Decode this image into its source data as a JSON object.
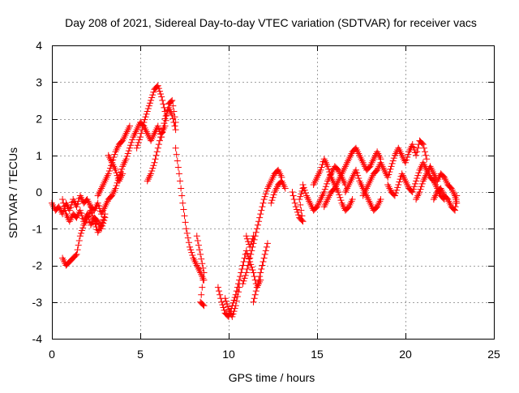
{
  "chart_data": {
    "type": "scatter",
    "title": "Day 208 of 2021, Sidereal Day-to-day VTEC variation (SDTVAR) for receiver vacs",
    "xlabel": "GPS time / hours",
    "ylabel": "SDTVAR / TECUs",
    "xlim": [
      0,
      25
    ],
    "ylim": [
      -4,
      4
    ],
    "xticks": [
      "0",
      "5",
      "10",
      "15",
      "20",
      "25"
    ],
    "yticks": [
      "4",
      "3",
      "2",
      "1",
      "0",
      "-1",
      "-2",
      "-3",
      "-4"
    ],
    "grid": true,
    "marker": "+",
    "color": "#ff0000",
    "series": [
      {
        "name": "SDTVAR",
        "tracks": [
          [
            [
              0.0,
              -0.3
            ],
            [
              0.2,
              -0.5
            ],
            [
              0.4,
              -0.4
            ],
            [
              0.6,
              -0.6
            ],
            [
              0.8,
              -0.3
            ],
            [
              1.0,
              -0.5
            ],
            [
              1.2,
              -0.2
            ],
            [
              1.4,
              -0.4
            ],
            [
              1.6,
              -0.1
            ],
            [
              1.8,
              -0.3
            ],
            [
              2.0,
              -0.2
            ],
            [
              2.2,
              -0.4
            ],
            [
              2.4,
              -0.5
            ],
            [
              2.6,
              -0.3
            ],
            [
              2.8,
              -0.6
            ],
            [
              3.0,
              -0.4
            ],
            [
              3.2,
              -0.2
            ],
            [
              3.4,
              -0.1
            ],
            [
              3.6,
              0.1
            ],
            [
              3.8,
              0.4
            ],
            [
              4.0,
              0.7
            ],
            [
              4.2,
              0.9
            ],
            [
              4.4,
              1.2
            ],
            [
              4.6,
              1.5
            ],
            [
              4.8,
              1.7
            ],
            [
              5.0,
              1.9
            ],
            [
              5.2,
              1.8
            ],
            [
              5.4,
              1.6
            ],
            [
              5.6,
              1.4
            ],
            [
              5.8,
              1.6
            ],
            [
              6.0,
              1.8
            ],
            [
              6.2,
              1.5
            ],
            [
              6.4,
              2.0
            ],
            [
              6.6,
              2.3
            ],
            [
              6.8,
              2.1
            ],
            [
              7.0,
              1.7
            ]
          ],
          [
            [
              0.6,
              -0.2
            ],
            [
              0.8,
              -0.6
            ],
            [
              1.0,
              -0.8
            ],
            [
              1.2,
              -0.6
            ],
            [
              1.4,
              -0.7
            ],
            [
              1.6,
              -0.5
            ],
            [
              1.8,
              -0.8
            ],
            [
              2.0,
              -0.6
            ],
            [
              2.2,
              -0.9
            ],
            [
              2.4,
              -0.7
            ],
            [
              2.6,
              -0.8
            ],
            [
              2.8,
              -1.0
            ],
            [
              3.0,
              -0.7
            ]
          ],
          [
            [
              0.6,
              -1.8
            ],
            [
              0.8,
              -2.0
            ],
            [
              1.0,
              -1.9
            ],
            [
              1.2,
              -1.8
            ],
            [
              1.4,
              -1.7
            ],
            [
              1.6,
              -1.2
            ],
            [
              1.8,
              -0.9
            ],
            [
              2.0,
              -0.7
            ],
            [
              2.2,
              -0.5
            ],
            [
              2.4,
              -0.8
            ],
            [
              2.6,
              -1.1
            ],
            [
              2.8,
              -0.9
            ],
            [
              3.0,
              -0.6
            ]
          ],
          [
            [
              2.6,
              -0.1
            ],
            [
              2.8,
              0.1
            ],
            [
              3.0,
              0.3
            ],
            [
              3.2,
              0.5
            ],
            [
              3.4,
              0.8
            ],
            [
              3.6,
              1.1
            ],
            [
              3.8,
              1.3
            ],
            [
              4.0,
              1.4
            ],
            [
              4.2,
              1.6
            ],
            [
              4.4,
              1.8
            ]
          ],
          [
            [
              3.2,
              1.0
            ],
            [
              3.4,
              0.8
            ],
            [
              3.6,
              0.6
            ],
            [
              3.8,
              0.3
            ],
            [
              4.0,
              0.5
            ]
          ],
          [
            [
              4.8,
              1.2
            ],
            [
              5.0,
              1.5
            ],
            [
              5.2,
              1.9
            ],
            [
              5.4,
              2.2
            ],
            [
              5.6,
              2.5
            ],
            [
              5.8,
              2.8
            ],
            [
              6.0,
              2.9
            ],
            [
              6.2,
              2.6
            ],
            [
              6.4,
              2.2
            ]
          ],
          [
            [
              5.4,
              0.3
            ],
            [
              5.6,
              0.5
            ],
            [
              5.8,
              0.8
            ],
            [
              6.0,
              1.2
            ],
            [
              6.2,
              1.6
            ],
            [
              6.4,
              1.8
            ],
            [
              6.6,
              2.4
            ],
            [
              6.8,
              2.5
            ],
            [
              7.0,
              1.9
            ]
          ],
          [
            [
              7.0,
              1.2
            ],
            [
              7.2,
              0.5
            ],
            [
              7.4,
              -0.3
            ],
            [
              7.6,
              -1.0
            ],
            [
              7.8,
              -1.5
            ],
            [
              8.0,
              -1.8
            ],
            [
              8.2,
              -2.0
            ],
            [
              8.4,
              -2.2
            ],
            [
              8.6,
              -2.4
            ]
          ],
          [
            [
              8.2,
              -1.2
            ],
            [
              8.4,
              -1.7
            ],
            [
              8.6,
              -2.2
            ],
            [
              8.4,
              -3.0
            ],
            [
              8.6,
              -3.1
            ]
          ],
          [
            [
              9.4,
              -2.6
            ],
            [
              9.6,
              -3.0
            ],
            [
              9.8,
              -3.3
            ],
            [
              10.0,
              -3.4
            ],
            [
              10.2,
              -3.1
            ],
            [
              10.4,
              -2.8
            ],
            [
              10.6,
              -2.4
            ],
            [
              10.8,
              -2.0
            ],
            [
              11.0,
              -1.6
            ],
            [
              11.2,
              -1.9
            ],
            [
              11.4,
              -2.2
            ],
            [
              11.6,
              -2.6
            ],
            [
              11.8,
              -2.4
            ]
          ],
          [
            [
              9.8,
              -2.9
            ],
            [
              10.0,
              -3.2
            ],
            [
              10.2,
              -3.4
            ],
            [
              10.4,
              -3.1
            ],
            [
              10.6,
              -2.6
            ]
          ],
          [
            [
              10.8,
              -2.5
            ],
            [
              11.0,
              -2.2
            ],
            [
              11.2,
              -1.8
            ],
            [
              11.4,
              -1.4
            ],
            [
              11.6,
              -1.0
            ],
            [
              11.8,
              -0.6
            ],
            [
              12.0,
              -0.2
            ],
            [
              12.2,
              0.1
            ],
            [
              12.4,
              0.3
            ],
            [
              12.6,
              0.5
            ],
            [
              12.8,
              0.6
            ],
            [
              13.0,
              0.4
            ]
          ],
          [
            [
              11.4,
              -3.0
            ],
            [
              11.6,
              -2.6
            ],
            [
              11.8,
              -2.2
            ],
            [
              12.0,
              -1.8
            ],
            [
              12.2,
              -1.4
            ]
          ],
          [
            [
              11.0,
              -1.2
            ],
            [
              11.2,
              -1.5
            ],
            [
              11.4,
              -1.2
            ]
          ],
          [
            [
              12.4,
              -0.3
            ],
            [
              12.6,
              0.0
            ],
            [
              12.8,
              0.2
            ],
            [
              13.0,
              0.3
            ],
            [
              13.2,
              0.1
            ]
          ],
          [
            [
              13.6,
              0.0
            ],
            [
              13.8,
              -0.4
            ],
            [
              14.0,
              -0.7
            ],
            [
              14.2,
              -0.8
            ],
            [
              14.0,
              -0.2
            ],
            [
              14.2,
              0.1
            ]
          ],
          [
            [
              14.2,
              0.2
            ],
            [
              14.4,
              -0.1
            ],
            [
              14.6,
              -0.3
            ],
            [
              14.8,
              -0.5
            ],
            [
              15.0,
              -0.4
            ],
            [
              15.2,
              -0.2
            ],
            [
              15.4,
              0.0
            ],
            [
              15.6,
              0.3
            ],
            [
              15.8,
              0.5
            ],
            [
              16.0,
              0.7
            ],
            [
              16.2,
              0.6
            ],
            [
              16.4,
              0.4
            ],
            [
              16.6,
              0.2
            ]
          ],
          [
            [
              14.8,
              0.2
            ],
            [
              15.0,
              0.4
            ],
            [
              15.2,
              0.6
            ],
            [
              15.4,
              0.9
            ],
            [
              15.6,
              0.7
            ],
            [
              15.8,
              0.4
            ],
            [
              16.0,
              0.2
            ],
            [
              16.2,
              0.0
            ],
            [
              16.4,
              -0.3
            ],
            [
              16.6,
              -0.5
            ],
            [
              16.8,
              -0.4
            ],
            [
              17.0,
              -0.2
            ]
          ],
          [
            [
              15.4,
              -0.4
            ],
            [
              15.6,
              -0.2
            ],
            [
              15.8,
              0.0
            ],
            [
              16.0,
              0.1
            ],
            [
              16.2,
              0.3
            ],
            [
              16.4,
              0.5
            ],
            [
              16.6,
              0.7
            ],
            [
              16.8,
              0.9
            ],
            [
              17.0,
              1.1
            ],
            [
              17.2,
              1.2
            ],
            [
              17.4,
              1.0
            ],
            [
              17.6,
              0.8
            ],
            [
              17.8,
              0.6
            ],
            [
              18.0,
              0.7
            ],
            [
              18.2,
              0.9
            ],
            [
              18.4,
              1.1
            ],
            [
              18.6,
              0.9
            ]
          ],
          [
            [
              16.6,
              0.0
            ],
            [
              16.8,
              0.2
            ],
            [
              17.0,
              0.4
            ],
            [
              17.2,
              0.6
            ],
            [
              17.4,
              0.3
            ],
            [
              17.6,
              0.1
            ],
            [
              17.8,
              -0.1
            ],
            [
              18.0,
              -0.3
            ],
            [
              18.2,
              -0.5
            ],
            [
              18.4,
              -0.4
            ],
            [
              18.6,
              -0.2
            ]
          ],
          [
            [
              17.6,
              -0.1
            ],
            [
              17.8,
              0.1
            ],
            [
              18.0,
              0.3
            ],
            [
              18.2,
              0.5
            ],
            [
              18.4,
              0.6
            ],
            [
              18.6,
              0.8
            ],
            [
              18.8,
              0.6
            ],
            [
              19.0,
              0.4
            ],
            [
              19.2,
              0.7
            ],
            [
              19.4,
              1.0
            ],
            [
              19.6,
              1.2
            ],
            [
              19.8,
              1.0
            ],
            [
              20.0,
              0.8
            ],
            [
              20.2,
              1.1
            ],
            [
              20.4,
              1.3
            ],
            [
              20.6,
              1.0
            ],
            [
              20.8,
              1.4
            ],
            [
              21.0,
              1.3
            ],
            [
              21.2,
              0.9
            ]
          ],
          [
            [
              19.0,
              0.2
            ],
            [
              19.2,
              0.0
            ],
            [
              19.4,
              -0.1
            ],
            [
              19.6,
              0.2
            ],
            [
              19.8,
              0.5
            ],
            [
              20.0,
              0.3
            ],
            [
              20.2,
              0.1
            ],
            [
              20.4,
              0.0
            ],
            [
              20.6,
              0.3
            ],
            [
              20.8,
              0.6
            ],
            [
              21.0,
              0.8
            ],
            [
              21.2,
              0.6
            ],
            [
              21.4,
              0.4
            ],
            [
              21.6,
              0.3
            ],
            [
              21.8,
              0.1
            ],
            [
              22.0,
              -0.1
            ],
            [
              22.2,
              -0.2
            ]
          ],
          [
            [
              20.6,
              -0.2
            ],
            [
              20.8,
              0.0
            ],
            [
              21.0,
              0.3
            ],
            [
              21.2,
              0.5
            ],
            [
              21.4,
              0.7
            ],
            [
              21.6,
              0.5
            ],
            [
              21.8,
              0.3
            ],
            [
              22.0,
              0.5
            ],
            [
              22.2,
              0.4
            ],
            [
              22.4,
              0.2
            ],
            [
              22.6,
              0.1
            ],
            [
              22.8,
              -0.1
            ],
            [
              22.9,
              -0.3
            ]
          ],
          [
            [
              21.6,
              -0.2
            ],
            [
              21.8,
              0.0
            ],
            [
              22.0,
              0.1
            ],
            [
              22.2,
              -0.1
            ],
            [
              22.4,
              -0.2
            ],
            [
              22.6,
              -0.4
            ],
            [
              22.8,
              -0.5
            ],
            [
              22.9,
              -0.1
            ]
          ]
        ]
      }
    ]
  }
}
